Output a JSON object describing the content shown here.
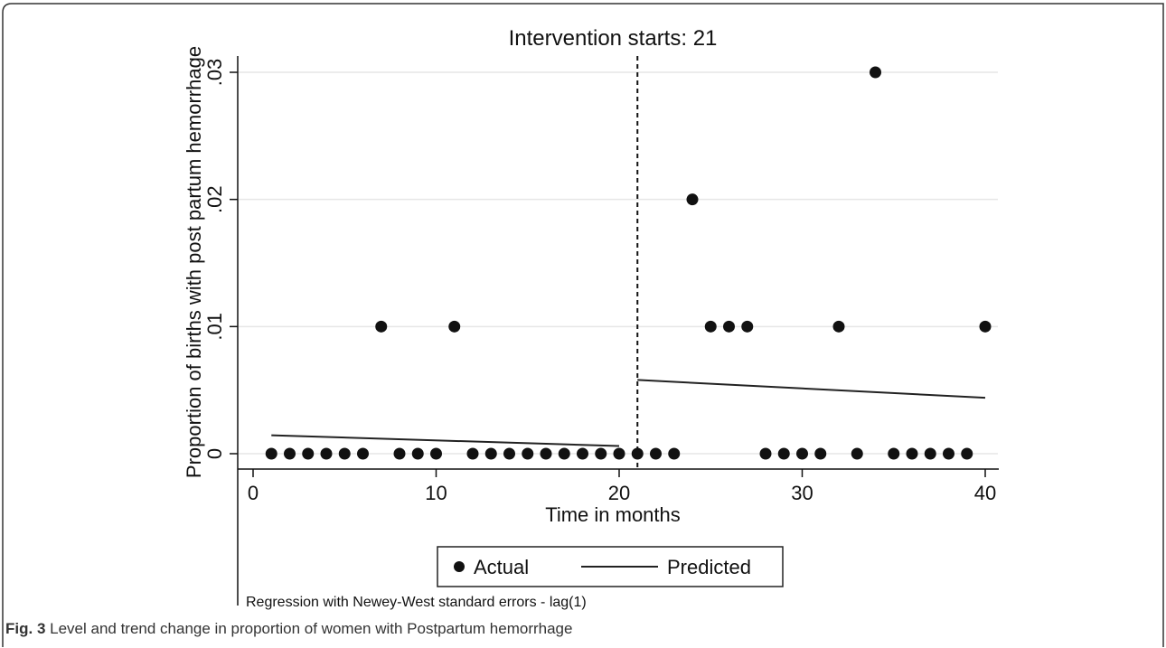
{
  "chart_data": {
    "type": "scatter",
    "title": "Intervention starts: 21",
    "xlabel": "Time in months",
    "ylabel": "Proportion of births with post partum hemorrhage",
    "xlim": [
      0,
      40
    ],
    "ylim": [
      0,
      0.03
    ],
    "x_ticks": [
      0,
      10,
      20,
      30,
      40
    ],
    "x_tick_labels": [
      "0",
      "10",
      "20",
      "30",
      "40"
    ],
    "y_ticks": [
      0,
      0.01,
      0.02,
      0.03
    ],
    "y_tick_labels": [
      "0",
      ".01",
      ".02",
      ".03"
    ],
    "grid": true,
    "intervention_x": 21,
    "legend_position": "bottom",
    "series": [
      {
        "name": "Actual",
        "kind": "points",
        "x": [
          1,
          2,
          3,
          4,
          5,
          6,
          7,
          8,
          9,
          10,
          11,
          12,
          13,
          14,
          15,
          16,
          17,
          18,
          19,
          20,
          21,
          22,
          23,
          24,
          25,
          26,
          27,
          28,
          29,
          30,
          31,
          32,
          33,
          34,
          35,
          36,
          37,
          38,
          39,
          40
        ],
        "y": [
          0,
          0,
          0,
          0,
          0,
          0,
          0.01,
          0,
          0,
          0,
          0.01,
          0,
          0,
          0,
          0,
          0,
          0,
          0,
          0,
          0,
          0,
          0,
          0,
          0.02,
          0.01,
          0.01,
          0.01,
          0,
          0,
          0,
          0,
          0.01,
          0,
          0.03,
          0,
          0,
          0,
          0,
          0,
          0.01
        ]
      },
      {
        "name": "Predicted",
        "kind": "segments",
        "segments": [
          {
            "x": [
              1,
              20
            ],
            "y": [
              0.00145,
              0.0006
            ]
          },
          {
            "x": [
              21,
              40
            ],
            "y": [
              0.0058,
              0.0044
            ]
          }
        ]
      }
    ],
    "note": "Regression with Newey-West standard errors - lag(1)"
  },
  "caption": {
    "label": "Fig. 3",
    "text": " Level and trend change in proportion of women with Postpartum hemorrhage"
  },
  "colors": {
    "ink": "#111111",
    "grid": "#e6e6e6",
    "frame": "#333333"
  }
}
